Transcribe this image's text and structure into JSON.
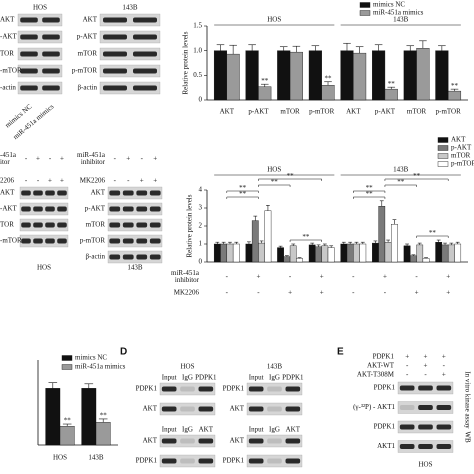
{
  "chart_data": [
    {
      "type": "bar",
      "ylabel": "Relative protein levels",
      "groups": [
        "HOS",
        "143B"
      ],
      "categories": [
        "AKT",
        "p-AKT",
        "mTOR",
        "p-mTOR",
        "AKT",
        "p-AKT",
        "mTOR",
        "p-mTOR"
      ],
      "series": [
        {
          "name": "mimics NC",
          "color": "#111111",
          "values": [
            1,
            1,
            1,
            1,
            1,
            1,
            1,
            1
          ],
          "errors": [
            0.12,
            0.12,
            0.08,
            0.1,
            0.15,
            0.12,
            0.1,
            0.1
          ]
        },
        {
          "name": "miR-451a mimics",
          "color": "#9a9a9a",
          "values": [
            0.93,
            0.27,
            0.97,
            0.3,
            0.95,
            0.22,
            1.05,
            0.18
          ],
          "errors": [
            0.18,
            0.05,
            0.12,
            0.07,
            0.13,
            0.04,
            0.15,
            0.04
          ],
          "annotations": [
            null,
            "**",
            null,
            "**",
            null,
            "**",
            null,
            "**"
          ]
        }
      ],
      "ylim": [
        0,
        1.5
      ],
      "yticks": [
        0,
        0.5,
        {
          "value": 1,
          "label": "1.0"
        },
        1.5
      ]
    },
    {
      "type": "bar",
      "ylabel": "Relative protein levels",
      "groups": [
        "HOS",
        "143B"
      ],
      "categories": [
        null,
        null,
        null,
        null,
        null,
        null,
        null,
        null
      ],
      "series": [
        {
          "name": "AKT",
          "color": "#111111",
          "values": [
            1,
            1,
            0.8,
            0.95,
            1,
            1.05,
            0.9,
            1.1
          ],
          "errors": [
            0.1,
            0.12,
            0.08,
            0.1,
            0.1,
            0.12,
            0.1,
            0.12
          ]
        },
        {
          "name": "p-AKT",
          "color": "#7a7a7a",
          "values": [
            1,
            2.3,
            0.3,
            0.85,
            1,
            3.1,
            0.35,
            0.95
          ],
          "errors": [
            0.1,
            0.25,
            0.05,
            0.1,
            0.1,
            0.3,
            0.05,
            0.1
          ]
        },
        {
          "name": "mTOR",
          "color": "#c8c8c8",
          "values": [
            1,
            1.05,
            0.9,
            0.9,
            1,
            1.1,
            0.95,
            0.95
          ],
          "errors": [
            0.1,
            0.12,
            0.1,
            0.1,
            0.1,
            0.12,
            0.1,
            0.1
          ]
        },
        {
          "name": "p-mTOR",
          "color": "#ffffff",
          "values": [
            1,
            2.85,
            0.2,
            0.8,
            1,
            2.1,
            0.2,
            1.0
          ],
          "errors": [
            0.1,
            0.3,
            0.04,
            0.1,
            0.1,
            0.25,
            0.04,
            0.1
          ]
        }
      ],
      "conditions": [
        {
          "name": [
            "miR-451a",
            "inhibitor"
          ],
          "values": [
            "-",
            "+",
            "-",
            "+",
            "-",
            "+",
            "-",
            "+"
          ]
        },
        {
          "name": [
            "MK2206"
          ],
          "values": [
            "-",
            "-",
            "+",
            "+",
            "-",
            "-",
            "+",
            "+"
          ]
        }
      ],
      "brackets": [
        "**",
        "**",
        "**",
        "**",
        "**",
        "**",
        "**",
        "**",
        "**",
        "**"
      ],
      "ylim": [
        0,
        4
      ],
      "yticks": [
        0,
        1,
        2,
        3,
        4
      ]
    },
    {
      "type": "bar",
      "categories": [
        "HOS",
        "143B"
      ],
      "series": [
        {
          "name": "mimics NC",
          "color": "#111111",
          "values": [
            1.0,
            1.0
          ],
          "errors": [
            0.1,
            0.08
          ]
        },
        {
          "name": "miR-451a mimics",
          "color": "#9a9a9a",
          "values": [
            0.33,
            0.4
          ],
          "errors": [
            0.04,
            0.06
          ],
          "annotations": [
            "**",
            "**"
          ]
        }
      ],
      "ylim": [
        0,
        1.5
      ]
    }
  ],
  "panel_labels": [
    "D",
    "E"
  ],
  "blots": [
    {
      "title": "HOS",
      "sections": [
        {
          "rows": [
            "AKT",
            "-AKT",
            "TOR",
            "-mTOR",
            "-actin"
          ]
        }
      ],
      "lanes": [
        "mimics NC",
        "miR-451a mimics"
      ]
    },
    {
      "title": "143B",
      "sections": [
        {
          "rows": [
            "AKT",
            "p-AKT",
            "mTOR",
            "p-mTOR",
            "β-actin"
          ]
        }
      ]
    },
    {
      "title": "HOS",
      "headers": [
        {
          "label": [
            "-451a",
            "itor"
          ],
          "signs": [
            "-",
            "+",
            "-",
            "+"
          ]
        },
        {
          "label": [
            "2206"
          ],
          "signs": [
            "-",
            "-",
            "+",
            "+"
          ]
        }
      ],
      "sections": [
        {
          "rows": [
            "AKT",
            "-AKT",
            "TOR",
            "-mTOR"
          ]
        }
      ]
    },
    {
      "title": "143B",
      "headers": [
        {
          "label": [
            "miR-451a",
            "inhibitor"
          ],
          "signs": [
            "-",
            "+",
            "-",
            "+"
          ]
        },
        {
          "label": [
            "MK2206"
          ],
          "signs": [
            "-",
            "-",
            "+",
            "+"
          ]
        }
      ],
      "sections": [
        {
          "rows": [
            "AKT",
            "p-AKT",
            "mTOR",
            "p-mTOR",
            "β-actin"
          ]
        }
      ]
    },
    {
      "title": "HOS",
      "sections": [
        {
          "cols": [
            "Input",
            "IgG",
            "PDPK1"
          ],
          "rows": [
            "PDPK1",
            "AKT"
          ]
        },
        {
          "cols": [
            "Input",
            "IgG",
            "AKT"
          ],
          "rows": [
            "AKT",
            "PDPK1"
          ]
        }
      ]
    },
    {
      "title": "143B",
      "sections": [
        {
          "cols": [
            "Input",
            "IgG",
            "PDPK1"
          ],
          "rows": [
            "PDPK1",
            "AKT"
          ]
        },
        {
          "cols": [
            "Input",
            "IgG",
            "AKT"
          ],
          "rows": [
            "AKT",
            "PDPK1"
          ]
        }
      ]
    },
    {
      "title": "HOS",
      "headers": [
        {
          "label": [
            "PDPK1"
          ],
          "signs": [
            "+",
            "+",
            "+"
          ]
        },
        {
          "label": [
            "AKT-WT"
          ],
          "signs": [
            "-",
            "+",
            "-"
          ]
        },
        {
          "label": [
            "AKT-T308M"
          ],
          "signs": [
            "-",
            "-",
            "+"
          ]
        }
      ],
      "sections": [
        {
          "rows": [
            "PDPK1",
            "(γ-³²P) - AKT1",
            "PDPK1",
            "AKT1"
          ]
        }
      ],
      "side": [
        "In vitro kinase assay",
        "WB"
      ]
    }
  ]
}
